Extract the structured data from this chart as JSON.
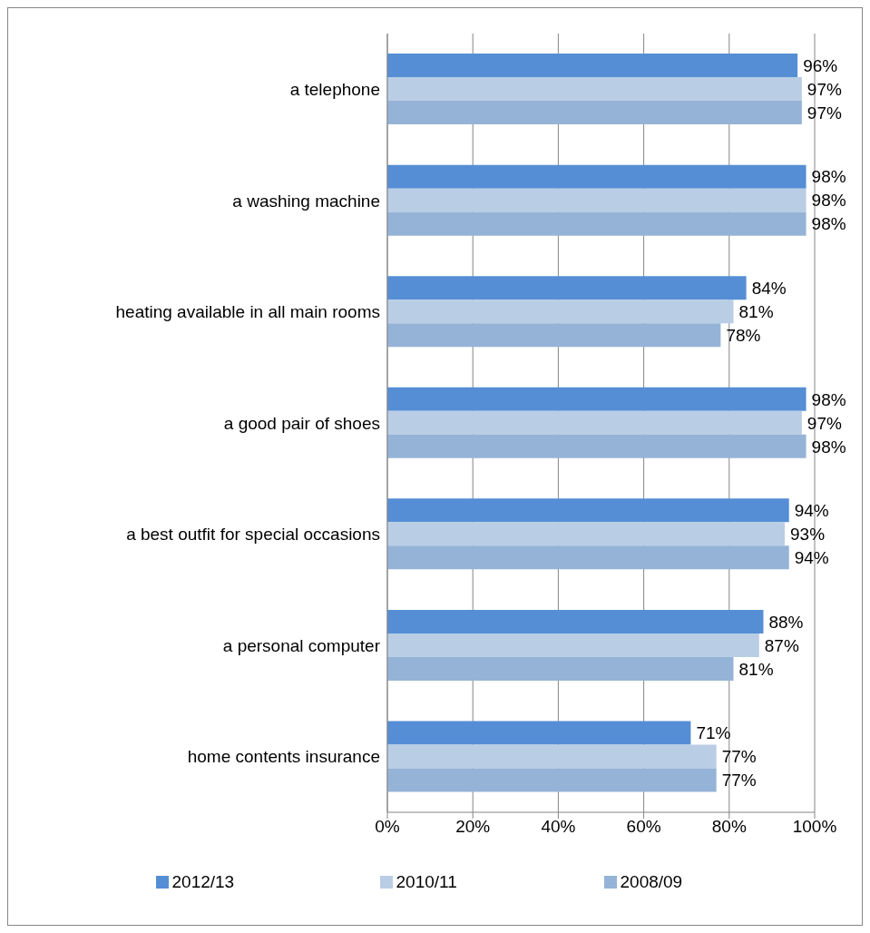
{
  "chart_data": {
    "type": "bar",
    "orientation": "horizontal",
    "categories": [
      "a telephone",
      "a washing machine",
      "heating available in all main rooms",
      "a good pair of shoes",
      "a best outfit for special occasions",
      "a personal computer",
      "home contents insurance"
    ],
    "series": [
      {
        "name": "2012/13",
        "color": "#558ed5",
        "values": [
          96,
          98,
          84,
          98,
          94,
          88,
          71
        ],
        "value_labels": [
          "96%",
          "98%",
          "84%",
          "98%",
          "94%",
          "88%",
          "71%"
        ]
      },
      {
        "name": "2010/11",
        "color": "#b9cde5",
        "values": [
          97,
          98,
          81,
          97,
          93,
          87,
          77
        ],
        "value_labels": [
          "97%",
          "98%",
          "81%",
          "97%",
          "93%",
          "87%",
          "77%"
        ]
      },
      {
        "name": "2008/09",
        "color": "#95b3d7",
        "values": [
          97,
          98,
          78,
          98,
          94,
          81,
          77
        ],
        "value_labels": [
          "97%",
          "98%",
          "78%",
          "98%",
          "94%",
          "81%",
          "77%"
        ]
      }
    ],
    "xlim": [
      0,
      100
    ],
    "xticks": [
      {
        "value": 0,
        "label": "0%"
      },
      {
        "value": 20,
        "label": "20%"
      },
      {
        "value": 40,
        "label": "40%"
      },
      {
        "value": 60,
        "label": "60%"
      },
      {
        "value": 80,
        "label": "80%"
      },
      {
        "value": 100,
        "label": "100%"
      }
    ],
    "grid": "x",
    "legend": "bottom"
  }
}
